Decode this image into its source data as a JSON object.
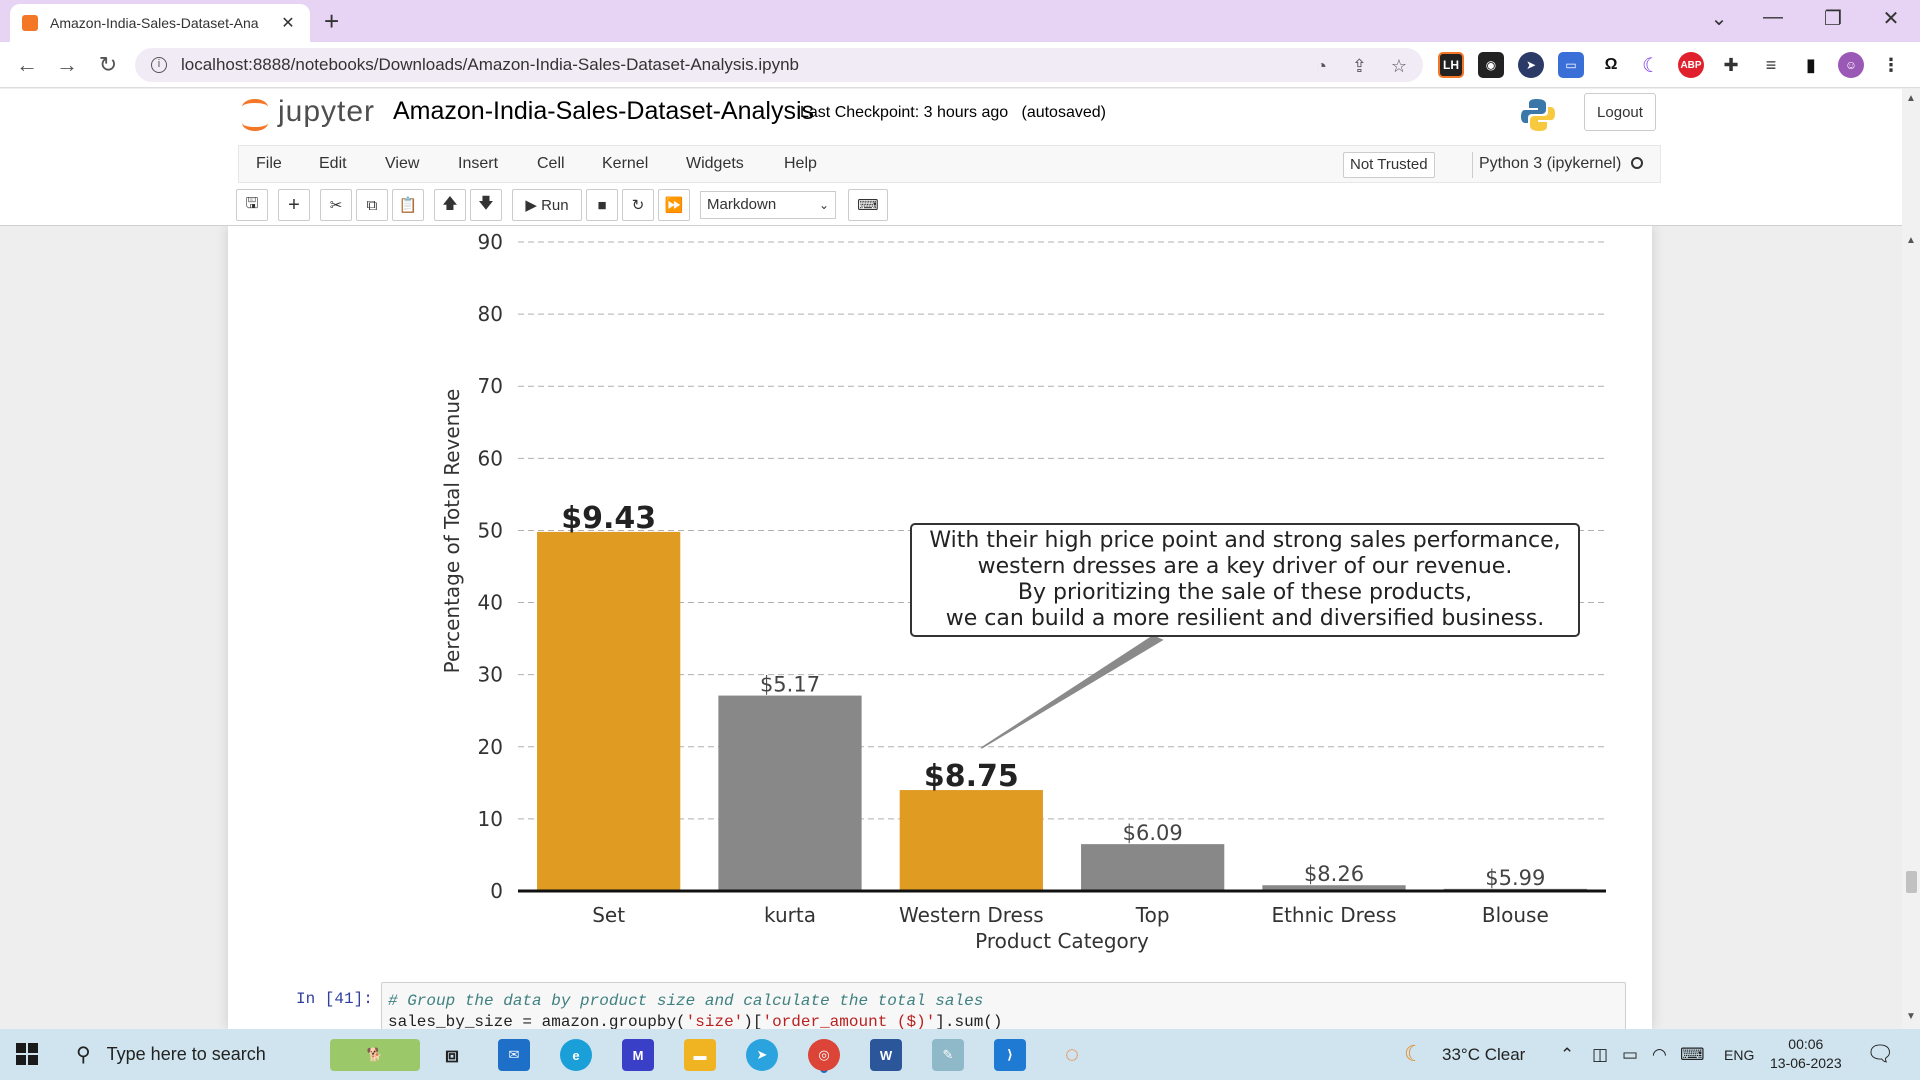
{
  "browser": {
    "tab_title": "Amazon-India-Sales-Dataset-Ana",
    "url": "localhost:8888/notebooks/Downloads/Amazon-India-Sales-Dataset-Analysis.ipynb",
    "extensions": [
      "LH",
      "ABP"
    ]
  },
  "jupyter": {
    "logo_text": "jupyter",
    "notebook_name": "Amazon-India-Sales-Dataset-Analysis",
    "checkpoint": "Last Checkpoint: 3 hours ago",
    "autosave": "(autosaved)",
    "logout_label": "Logout",
    "menu": [
      "File",
      "Edit",
      "View",
      "Insert",
      "Cell",
      "Kernel",
      "Widgets",
      "Help"
    ],
    "trust_label": "Not Trusted",
    "kernel_label": "Python 3 (ipykernel)",
    "run_label": "Run",
    "cell_type": "Markdown"
  },
  "chart_data": {
    "type": "bar",
    "xlabel": "Product Category",
    "ylabel": "Percentage of Total Revenue",
    "ylim": [
      0,
      90
    ],
    "yticks": [
      0,
      10,
      20,
      30,
      40,
      50,
      60,
      70,
      80,
      90
    ],
    "grid": "y-dashed",
    "categories": [
      "Set",
      "kurta",
      "Western Dress",
      "Top",
      "Ethnic Dress",
      "Blouse"
    ],
    "values": [
      49.8,
      27.1,
      14.0,
      6.5,
      0.8,
      0.3
    ],
    "labels": [
      "$9.43",
      "$5.17",
      "$8.75",
      "$6.09",
      "$8.26",
      "$5.99"
    ],
    "highlight": [
      true,
      false,
      true,
      false,
      false,
      false
    ],
    "colors": {
      "highlight": "#e09b22",
      "normal": "#888888"
    },
    "annotation": {
      "lines": [
        "With their high price point and strong sales performance,",
        "western dresses are a key driver of our revenue.",
        "By prioritizing the sale of these products,",
        "we can build a more resilient and diversified business."
      ],
      "target_category": "Western Dress"
    }
  },
  "code_cell": {
    "prompt": "In [41]:",
    "comment": "# Group the data by product size and calculate the total sales",
    "code_prefix": "sales_by_size = amazon.groupby(",
    "arg1": "'size'",
    "mid": ")[",
    "arg2": "'order_amount ($)'",
    "suffix": "].sum()"
  },
  "taskbar": {
    "search_placeholder": "Type here to search",
    "weather": "33°C  Clear",
    "language": "ENG",
    "time": "00:06",
    "date": "13-06-2023"
  }
}
